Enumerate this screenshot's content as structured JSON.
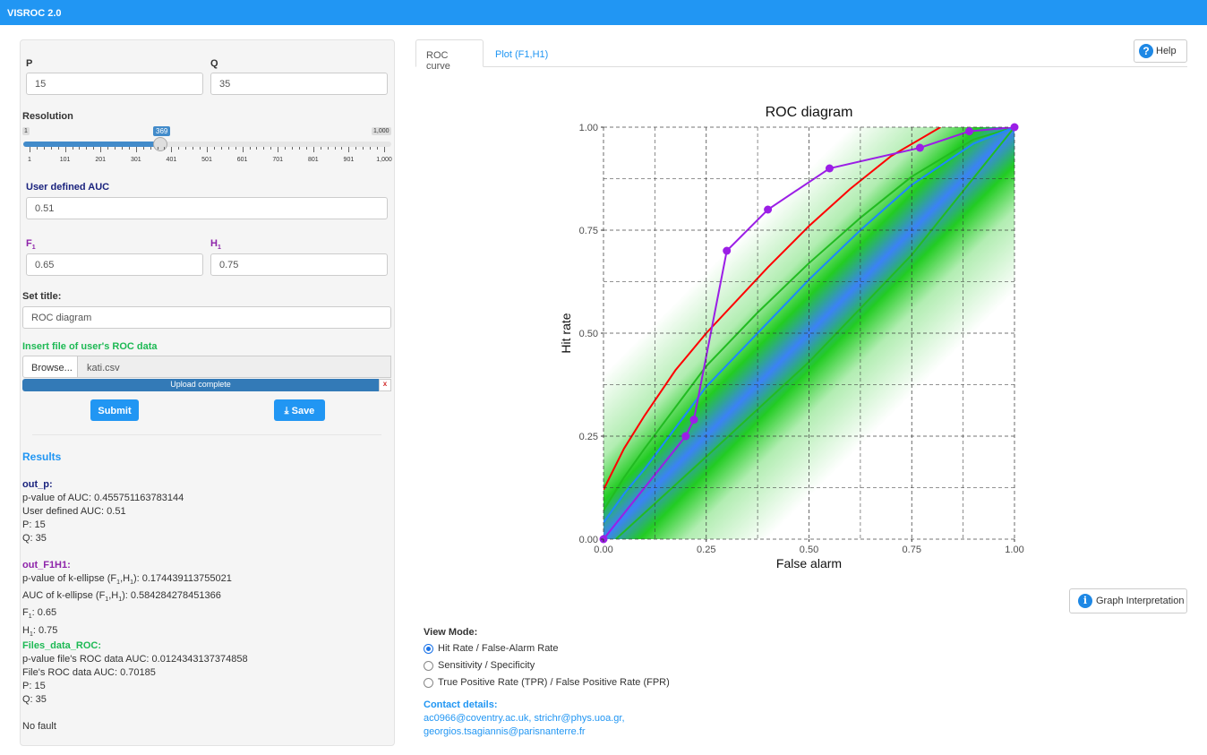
{
  "app": {
    "title": "VISROC 2.0"
  },
  "sidebar": {
    "p_label": "P",
    "p_value": "15",
    "q_label": "Q",
    "q_value": "35",
    "resolution": {
      "label": "Resolution",
      "min": "1",
      "max": "1,000",
      "value": "369",
      "value_num": 369,
      "ticks": [
        "1",
        "101",
        "201",
        "301",
        "401",
        "501",
        "601",
        "701",
        "801",
        "901",
        "1,000"
      ]
    },
    "auc_label": "User defined AUC",
    "auc_value": "0.51",
    "f1_label": "F",
    "h1_label": "H",
    "sub": "1",
    "f1_value": "0.65",
    "h1_value": "0.75",
    "title_label": "Set title:",
    "title_value": "ROC diagram",
    "file_label": "Insert file of user's ROC data",
    "browse": "Browse...",
    "file_name": "kati.csv",
    "upload_status": "Upload complete",
    "upload_close": "x",
    "submit": "Submit",
    "save": "Save",
    "results_title": "Results",
    "out_p": {
      "title": "out_p:",
      "lines": [
        "p-value of AUC: 0.455751163783144",
        "User defined AUC: 0.51",
        "P: 15",
        "Q: 35"
      ]
    },
    "out_f1h1": {
      "title": "out_F1H1:",
      "l1a": "p-value of k-ellipse (F",
      "l1b": ",H",
      "l1c": "): 0.174439113755021",
      "l2a": "AUC of k-ellipse (F",
      "l2b": ",H",
      "l2c": "): 0.584284278451366",
      "l3a": "F",
      "l3c": ": 0.65",
      "l4a": "H",
      "l4c": ": 0.75"
    },
    "files": {
      "title": "Files_data_ROC:",
      "lines": [
        "p-value file's ROC data AUC: 0.0124343137374858",
        "File's ROC data AUC: 0.70185",
        "P: 15",
        "Q: 35"
      ]
    },
    "status": "No fault"
  },
  "main": {
    "tabs": [
      {
        "label": "ROC curve",
        "active": true
      },
      {
        "label": "Plot (F1,H1)",
        "active": false
      }
    ],
    "help": "Help",
    "interpretation": "Graph Interpretation",
    "view_mode": {
      "label": "View Mode:",
      "options": [
        {
          "label": "Hit Rate / False-Alarm Rate",
          "selected": true
        },
        {
          "label": "Sensitivity / Specificity",
          "selected": false
        },
        {
          "label": "True Positive Rate (TPR) / False Positive Rate (FPR)",
          "selected": false
        }
      ]
    },
    "contact": {
      "label": "Contact details:",
      "line1": "ac0966@coventry.ac.uk, strichr@phys.uoa.gr,",
      "line2": "georgios.tsagiannis@parisnanterre.fr"
    }
  },
  "chart_data": {
    "type": "line",
    "title": "ROC diagram",
    "xlabel": "False alarm",
    "ylabel": "Hit rate",
    "xlim": [
      0,
      1
    ],
    "ylim": [
      0,
      1
    ],
    "xticks": [
      "0.00",
      "0.25",
      "0.50",
      "0.75",
      "1.00"
    ],
    "yticks": [
      "0.00",
      "0.25",
      "0.50",
      "0.75",
      "1.00"
    ],
    "grid": "dashed, every 0.125",
    "band": {
      "center_color": "#3b82f6",
      "edge_color": "#22cc22"
    },
    "series": [
      {
        "color": "#ff0000",
        "points": [
          [
            0,
            0.12
          ],
          [
            0.05,
            0.22
          ],
          [
            0.1,
            0.3
          ],
          [
            0.175,
            0.41
          ],
          [
            0.25,
            0.5
          ],
          [
            0.325,
            0.58
          ],
          [
            0.4,
            0.66
          ],
          [
            0.5,
            0.76
          ],
          [
            0.6,
            0.85
          ],
          [
            0.7,
            0.93
          ],
          [
            0.82,
            1.0
          ]
        ]
      },
      {
        "color": "#22bb22",
        "points": [
          [
            0,
            0.07
          ],
          [
            0.05,
            0.15
          ],
          [
            0.1,
            0.22
          ],
          [
            0.25,
            0.42
          ],
          [
            0.375,
            0.55
          ],
          [
            0.5,
            0.67
          ],
          [
            0.625,
            0.78
          ],
          [
            0.75,
            0.88
          ],
          [
            0.9,
            0.97
          ],
          [
            1,
            1
          ]
        ]
      },
      {
        "color": "#1e88ff",
        "points": [
          [
            0,
            0.04
          ],
          [
            0.05,
            0.11
          ],
          [
            0.1,
            0.17
          ],
          [
            0.25,
            0.37
          ],
          [
            0.375,
            0.5
          ],
          [
            0.5,
            0.63
          ],
          [
            0.625,
            0.75
          ],
          [
            0.75,
            0.86
          ],
          [
            0.9,
            0.96
          ],
          [
            1,
            1
          ]
        ]
      },
      {
        "color": "#22bb22",
        "points": [
          [
            0.03,
            0
          ],
          [
            0.25,
            0.2
          ],
          [
            0.5,
            0.43
          ],
          [
            0.75,
            0.69
          ],
          [
            1,
            1
          ]
        ]
      },
      {
        "color": "#9b1ee6",
        "markers": true,
        "points": [
          [
            0,
            0
          ],
          [
            0.2,
            0.25
          ],
          [
            0.22,
            0.29
          ],
          [
            0.3,
            0.7
          ],
          [
            0.4,
            0.8
          ],
          [
            0.55,
            0.9
          ],
          [
            0.77,
            0.95
          ],
          [
            0.89,
            0.99
          ],
          [
            1,
            1
          ]
        ]
      }
    ]
  }
}
